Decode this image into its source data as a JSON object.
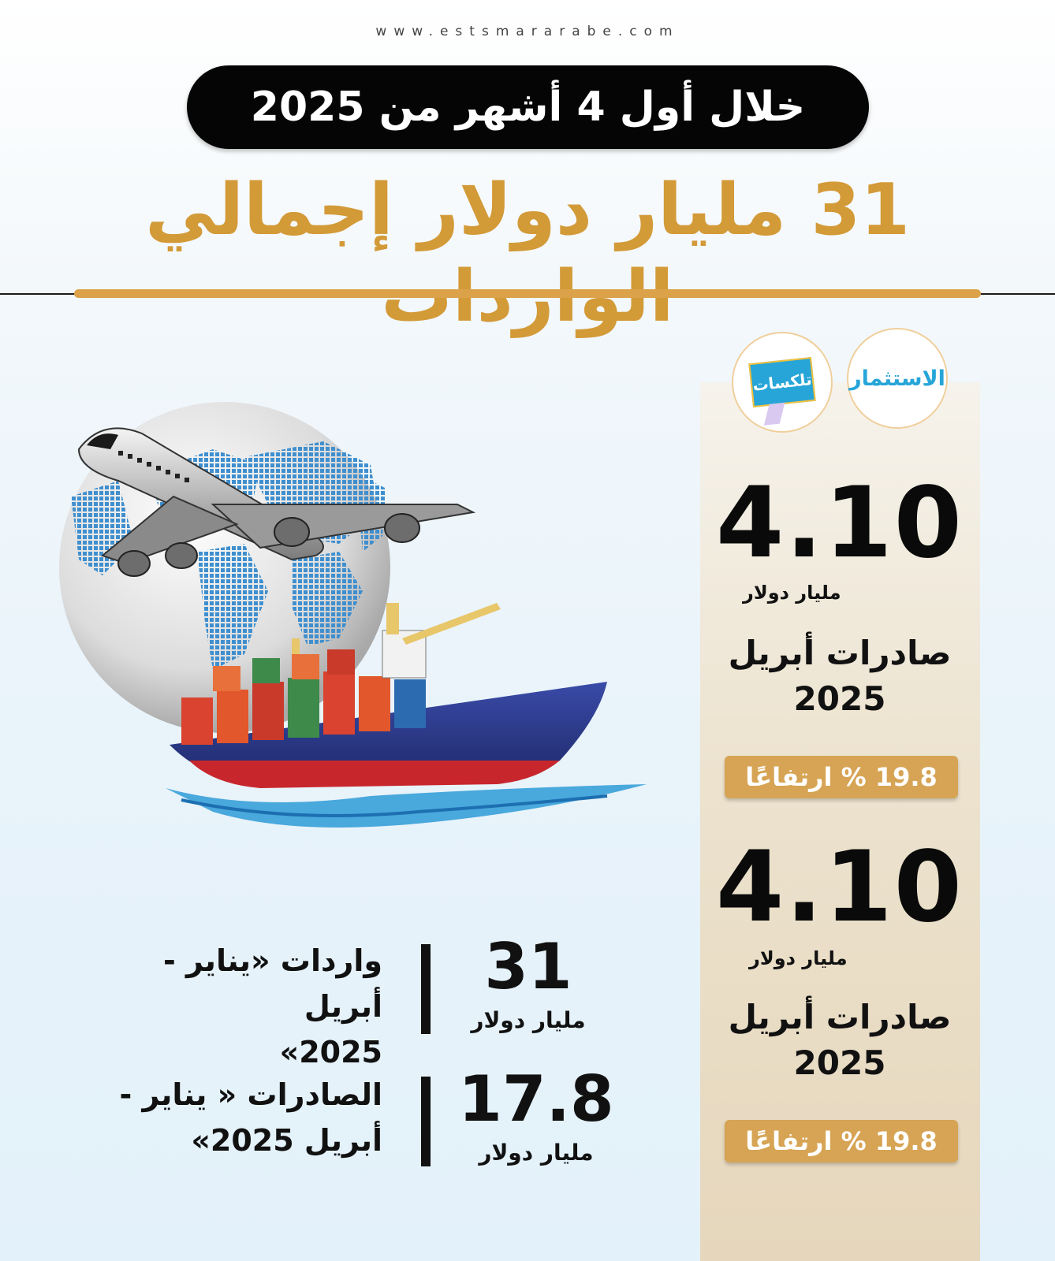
{
  "header": {
    "url": "www.estsmararabe.com",
    "period": "خلال أول 4 أشهر من 2025",
    "headline": "31 مليار دولار إجمالي الواردات"
  },
  "logos": {
    "estithmar": "الاستثمار",
    "telecast": "تلكسات"
  },
  "side_stats": [
    {
      "value": "4.10",
      "unit": "مليار دولار",
      "label_line1": "صادرات أبريل",
      "label_line2": "2025",
      "change": "19.8 % ارتفاعًا"
    },
    {
      "value": "4.10",
      "unit": "مليار دولار",
      "label_line1": "صادرات أبريل",
      "label_line2": "2025",
      "change": "19.8 % ارتفاعًا"
    }
  ],
  "bottom_stats": [
    {
      "value": "31",
      "unit": "مليار دولار",
      "label_line1": "واردات «يناير - أبريل",
      "label_line2": "2025»"
    },
    {
      "value": "17.8",
      "unit": "مليار دولار",
      "label_line1": "الصادرات « يناير -",
      "label_line2": "أبريل 2025»"
    }
  ],
  "colors": {
    "gold": "#d39a38",
    "badge_gold": "#d6a454",
    "panel": "#ece2ce",
    "ship_hull": "#2b3a8c",
    "globe_land": "#3f8fcf"
  },
  "icons": [
    "airplane-icon",
    "globe-icon",
    "cargo-ship-icon"
  ]
}
